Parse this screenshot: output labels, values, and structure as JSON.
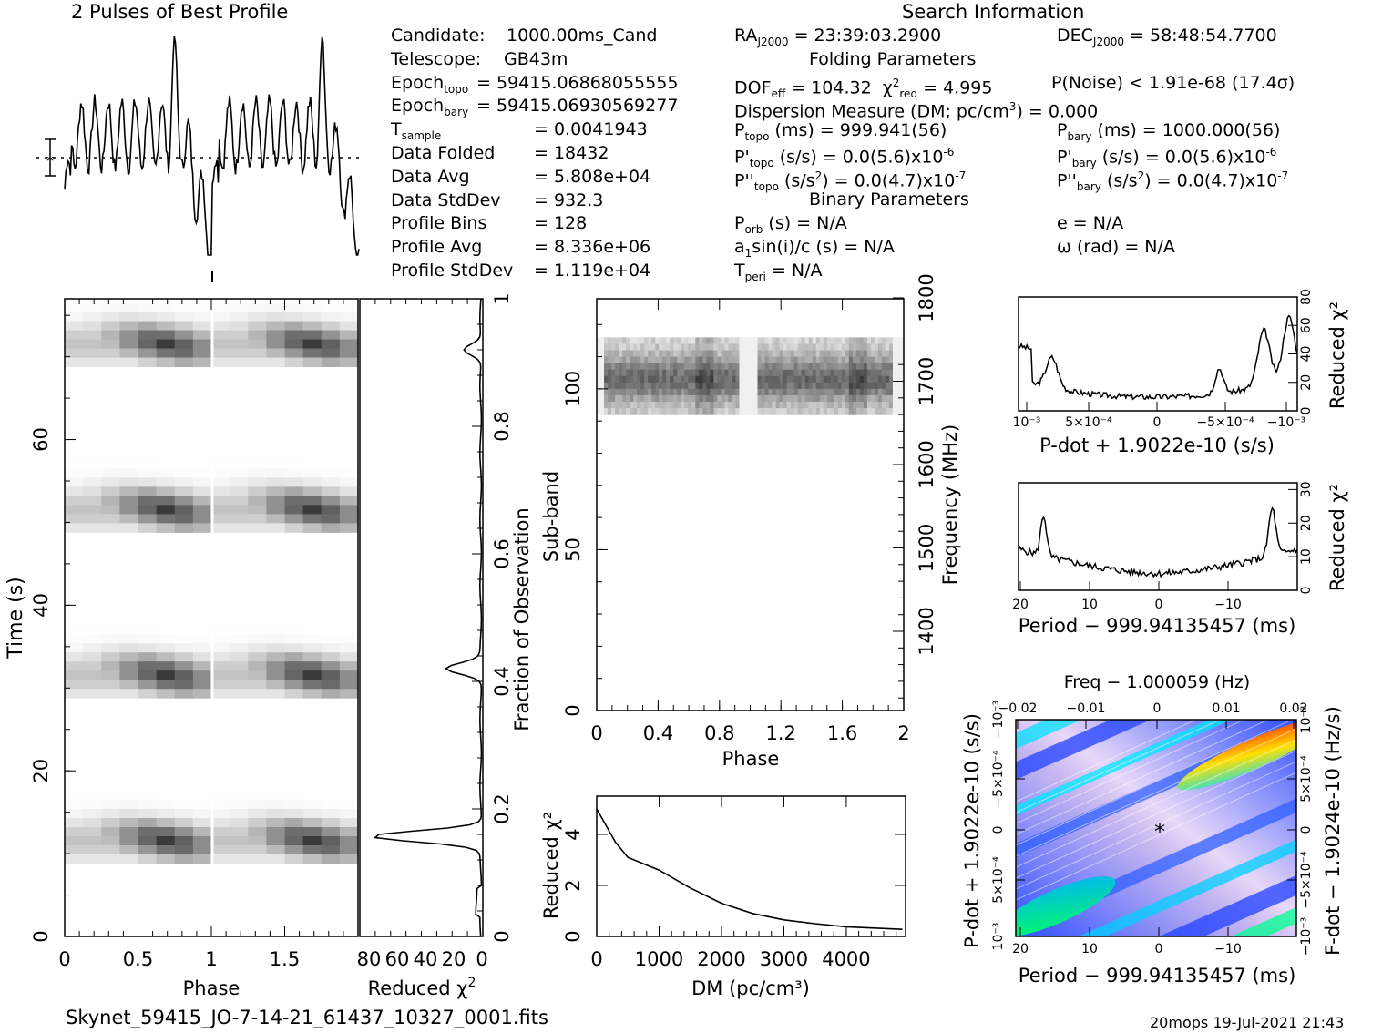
{
  "header": {
    "profile_title": "2 Pulses of Best Profile",
    "search_title": "Search Information",
    "folding_title": "Folding Parameters",
    "binary_title": "Binary Parameters"
  },
  "info_left": [
    {
      "label": "Candidate:",
      "value": "1000.00ms_Cand"
    },
    {
      "label": "Telescope:",
      "value": "GB43m"
    },
    {
      "label": "Epoch",
      "sub": "topo",
      "value": "= 59415.06868055555"
    },
    {
      "label": "Epoch",
      "sub": "bary",
      "value": "= 59415.06930569277"
    },
    {
      "label": "T",
      "sub": "sample",
      "value": "=   0.0041943"
    },
    {
      "label": "Data Folded",
      "value": "=   18432"
    },
    {
      "label": "Data Avg",
      "value": "=   5.808e+04"
    },
    {
      "label": "Data StdDev",
      "value": "=   932.3"
    },
    {
      "label": "Profile Bins",
      "value": "=   128"
    },
    {
      "label": "Profile Avg",
      "value": "=   8.336e+06"
    },
    {
      "label": "Profile StdDev",
      "value": "=   1.119e+04"
    }
  ],
  "info_mid": {
    "ra": "RA",
    "ra_sub": "J2000",
    "ra_val": "= 23:39:03.2900",
    "dec": "DEC",
    "dec_sub": "J2000",
    "dec_val": "= 58:48:54.7700",
    "dof": "DOF",
    "dof_sub": "eff",
    "dof_val": "= 104.32",
    "chi": "χ",
    "chi_sub": "red",
    "chi_val": "= 4.995",
    "pnoise": "P(Noise) < 1.91e-68   (17.4σ)",
    "dm": "Dispersion Measure (DM; pc/cm",
    "dm_tail": ") = 0.000",
    "ptopo": "P",
    "ptopo_sub": "topo",
    "ptopo_val": "(ms) =   999.941(56)",
    "pbary": "P",
    "pbary_sub": "bary",
    "pbary_val": "(ms) =   1000.000(56)",
    "pdtopo_val": "(s/s) = 0.0(5.6)x10",
    "pdtopo_exp": "-6",
    "pdbary_val": "(s/s) = 0.0(5.6)x10",
    "pdbary_exp": "-6",
    "pddtopo_val": "(s/s",
    "pddtopo_tail": ") = 0.0(4.7)x10",
    "pddtopo_exp": "-7",
    "pddbary_val": "(s/s",
    "pddbary_tail": ") = 0.0(4.7)x10",
    "pddbary_exp": "-7",
    "porb": "P",
    "porb_sub": "orb",
    "porb_val": "(s) = N/A",
    "ecc": "e = N/A",
    "asini": "a",
    "asini_sub": "1",
    "asini_val": "sin(i)/c (s) = N/A",
    "omega": "ω (rad) = N/A",
    "tperi": "T",
    "tperi_sub": "peri",
    "tperi_val": "= N/A"
  },
  "footer": {
    "filename": "Skynet_59415_JO-7-14-21_61437_10327_0001.fits",
    "stamp": "20mops 19-Jul-2021 21:43"
  },
  "colors": {
    "ink": "#000000",
    "heat_hot": "#ff0000",
    "heat_cold": "#0000ff",
    "heat_mid": "#00ff80"
  },
  "chart_data": [
    {
      "id": "profile",
      "type": "line",
      "title": "2 Pulses of Best Profile",
      "xlabel": "",
      "ylabel": "",
      "note": "pulse profile repeated twice; unlabelled amplitude axis"
    },
    {
      "id": "time-phase",
      "type": "heatmap",
      "xlabel": "Phase",
      "ylabel": "Time (s)",
      "x_ticks": [
        "0",
        "0.5",
        "1",
        "1.5"
      ],
      "y_ticks": [
        "0",
        "20",
        "40",
        "60"
      ],
      "xlim": [
        0,
        2
      ],
      "ylim": [
        0,
        77
      ],
      "bright_bands_time_s": [
        11,
        31,
        51,
        71
      ]
    },
    {
      "id": "time-chi2",
      "type": "line",
      "xlabel": "Reduced χ",
      "x_ticks": [
        "80",
        "60",
        "40",
        "20",
        "0"
      ],
      "right_label": "Fraction of Observation",
      "right_ticks": [
        "0",
        "0.2",
        "0.4",
        "0.6",
        "0.8",
        "1"
      ],
      "peaks": [
        {
          "fraction": 0.157,
          "chi2": 75
        },
        {
          "fraction": 0.42,
          "chi2": 24
        },
        {
          "fraction": 0.92,
          "chi2": 12
        }
      ]
    },
    {
      "id": "subband-phase",
      "type": "heatmap",
      "xlabel": "Phase",
      "ylabel": "Sub-band",
      "right_label": "Frequency (MHz)",
      "x_ticks": [
        "0",
        "0.4",
        "0.8",
        "1.2",
        "1.6",
        "2"
      ],
      "y_ticks": [
        "0",
        "50",
        "100"
      ],
      "right_ticks": [
        "1400",
        "1500",
        "1600",
        "1700",
        "1800"
      ],
      "active_subbands": [
        92,
        116
      ]
    },
    {
      "id": "dm-chi2",
      "type": "line",
      "xlabel": "DM (pc/cm³)",
      "ylabel": "Reduced χ²",
      "x_ticks": [
        "0",
        "1000",
        "2000",
        "3000",
        "4000"
      ],
      "y_ticks": [
        "0",
        "2",
        "4"
      ],
      "x": [
        0,
        300,
        500,
        1000,
        1500,
        2000,
        2500,
        3000,
        3500,
        4000,
        4900
      ],
      "y": [
        5.0,
        3.7,
        3.1,
        2.6,
        1.9,
        1.3,
        0.9,
        0.65,
        0.5,
        0.38,
        0.28
      ]
    },
    {
      "id": "pdot-chi2",
      "type": "line",
      "xlabel": "P-dot + 1.9022e-10 (s/s)",
      "ylabel": "Reduced χ²",
      "x_ticks": [
        "10⁻³",
        "5×10⁻⁴",
        "0",
        "−5×10⁻⁴",
        "−10⁻³"
      ],
      "y_ticks": [
        "0",
        "20",
        "40",
        "60",
        "80"
      ]
    },
    {
      "id": "period-chi2",
      "type": "line",
      "xlabel": "Period − 999.94135457 (ms)",
      "ylabel": "Reduced χ²",
      "x_ticks": [
        "20",
        "10",
        "0",
        "−10"
      ],
      "y_ticks": [
        "0",
        "10",
        "20",
        "30"
      ]
    },
    {
      "id": "p-pdot",
      "type": "heatmap",
      "xlabel": "Period − 999.94135457 (ms)",
      "ylabel": "P-dot + 1.9022e-10 (s/s)",
      "top_label": "Freq − 1.000059 (Hz)",
      "right_label": "F-dot − 1.9024e-10 (Hz/s)",
      "x_ticks": [
        "20",
        "10",
        "0",
        "−10"
      ],
      "top_ticks": [
        "−0.02",
        "−0.01",
        "0",
        "0.01",
        "0.02"
      ],
      "y_ticks": [
        "10⁻³",
        "5×10⁻⁴",
        "0",
        "−5×10⁻⁴",
        "−10⁻³"
      ],
      "right_ticks": [
        "−10⁻³",
        "−5×10⁻⁴",
        "0",
        "5×10⁻⁴",
        "10⁻³"
      ]
    }
  ]
}
